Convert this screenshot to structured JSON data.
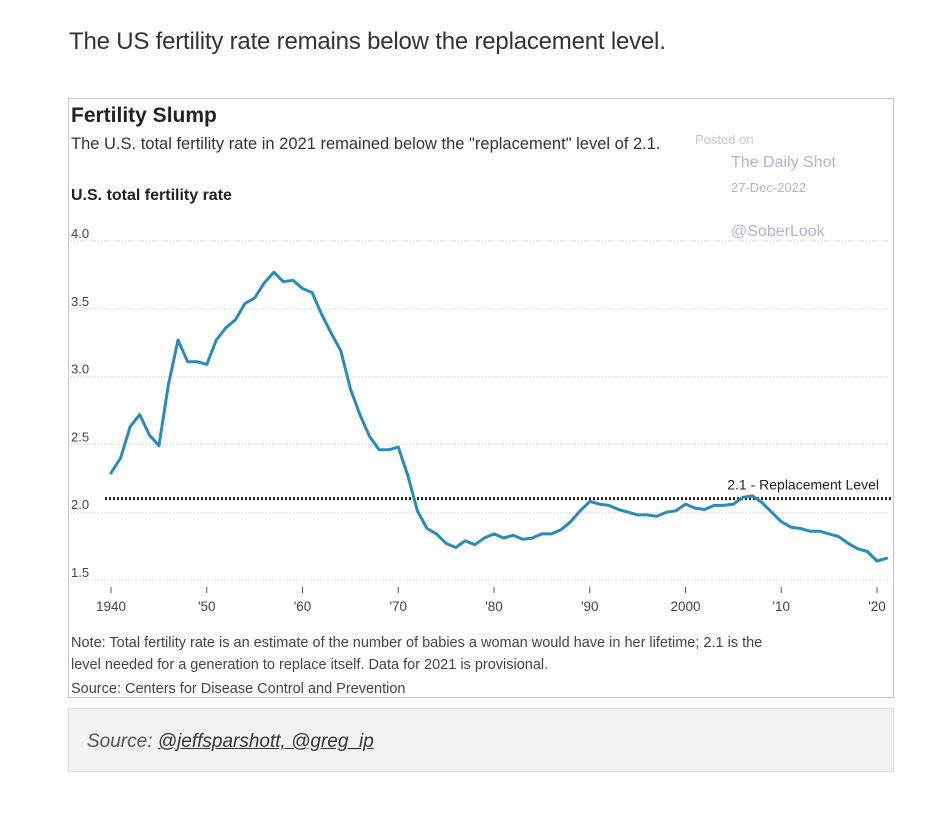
{
  "intro": "The US fertility rate remains below the replacement level.",
  "watermark": {
    "posted": "Posted on",
    "brand": "The Daily Shot",
    "date": "27-Dec-2022",
    "handle": "@SoberLook"
  },
  "source": {
    "prefix": "Source: ",
    "link": "@jeffsparshott, @greg_ip"
  },
  "colors": {
    "line": "#2a8ab8",
    "grid": "#cccccc",
    "text": "#333333"
  },
  "chart_data": {
    "type": "line",
    "title": "Fertility Slump",
    "subtitle": "The U.S. total fertility rate in 2021 remained below the \"replacement\" level of 2.1.",
    "ylabel": "U.S. total fertility rate",
    "xlabel": "",
    "ylim": [
      1.5,
      4.0
    ],
    "xlim": [
      1940,
      2021
    ],
    "yticks": [
      4.0,
      3.5,
      3.0,
      2.5,
      2.0,
      1.5
    ],
    "ytick_labels": [
      "4.0",
      "3.5",
      "3.0",
      "2.5",
      "2.0",
      "1.5"
    ],
    "xticks": [
      1940,
      1950,
      1960,
      1970,
      1980,
      1990,
      2000,
      2010,
      2020
    ],
    "xtick_labels": [
      "1940",
      "'50",
      "'60",
      "'70",
      "'80",
      "'90",
      "2000",
      "'10",
      "'20"
    ],
    "reference_line": {
      "value": 2.1,
      "label": "2.1 - Replacement Level"
    },
    "series": [
      {
        "name": "U.S. total fertility rate",
        "x": [
          1940,
          1941,
          1942,
          1943,
          1944,
          1945,
          1946,
          1947,
          1948,
          1949,
          1950,
          1951,
          1952,
          1953,
          1954,
          1955,
          1956,
          1957,
          1958,
          1959,
          1960,
          1961,
          1962,
          1963,
          1964,
          1965,
          1966,
          1967,
          1968,
          1969,
          1970,
          1971,
          1972,
          1973,
          1974,
          1975,
          1976,
          1977,
          1978,
          1979,
          1980,
          1981,
          1982,
          1983,
          1984,
          1985,
          1986,
          1987,
          1988,
          1989,
          1990,
          1991,
          1992,
          1993,
          1994,
          1995,
          1996,
          1997,
          1998,
          1999,
          2000,
          2001,
          2002,
          2003,
          2004,
          2005,
          2006,
          2007,
          2008,
          2009,
          2010,
          2011,
          2012,
          2013,
          2014,
          2015,
          2016,
          2017,
          2018,
          2019,
          2020,
          2021
        ],
        "values": [
          2.29,
          2.4,
          2.63,
          2.72,
          2.57,
          2.49,
          2.94,
          3.27,
          3.11,
          3.11,
          3.09,
          3.27,
          3.36,
          3.42,
          3.54,
          3.58,
          3.69,
          3.77,
          3.7,
          3.71,
          3.65,
          3.62,
          3.46,
          3.32,
          3.19,
          2.91,
          2.72,
          2.56,
          2.46,
          2.46,
          2.48,
          2.27,
          2.01,
          1.88,
          1.84,
          1.77,
          1.74,
          1.79,
          1.76,
          1.81,
          1.84,
          1.81,
          1.83,
          1.8,
          1.81,
          1.84,
          1.84,
          1.87,
          1.93,
          2.01,
          2.08,
          2.06,
          2.05,
          2.02,
          2.0,
          1.98,
          1.98,
          1.97,
          2.0,
          2.01,
          2.06,
          2.03,
          2.02,
          2.05,
          2.05,
          2.06,
          2.11,
          2.12,
          2.07,
          2.0,
          1.93,
          1.89,
          1.88,
          1.86,
          1.86,
          1.84,
          1.82,
          1.77,
          1.73,
          1.71,
          1.64,
          1.66
        ]
      }
    ],
    "note_lines": [
      "Note: Total fertility rate is an estimate of the number of babies a woman would have in her lifetime; 2.1 is the",
      "level needed for a generation to replace itself. Data for 2021 is provisional."
    ],
    "source_line": "Source: Centers for Disease Control and Prevention"
  }
}
